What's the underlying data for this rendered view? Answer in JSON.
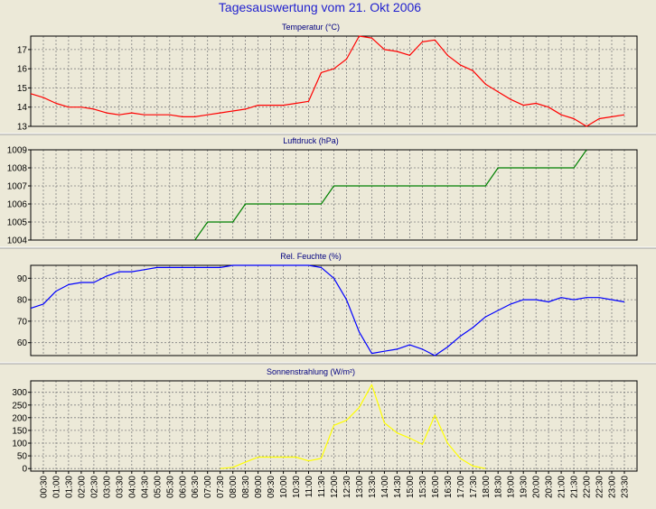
{
  "page_title": "Tagesauswertung vom 21. Okt 2006",
  "time_labels": [
    "00:30",
    "01:00",
    "01:30",
    "02:00",
    "02:30",
    "03:00",
    "03:30",
    "04:00",
    "04:30",
    "05:00",
    "05:30",
    "06:00",
    "06:30",
    "07:00",
    "07:30",
    "08:00",
    "08:30",
    "09:00",
    "09:30",
    "10:00",
    "10:30",
    "11:00",
    "11:30",
    "12:00",
    "12:30",
    "13:00",
    "13:30",
    "14:00",
    "14:30",
    "15:00",
    "15:30",
    "16:00",
    "16:30",
    "17:00",
    "17:30",
    "18:00",
    "18:30",
    "19:00",
    "19:30",
    "20:00",
    "20:30",
    "21:00",
    "21:30",
    "22:00",
    "22:30",
    "23:00",
    "23:30"
  ],
  "colors": {
    "background": "#ece9d8",
    "plot_background": "#ece9d8",
    "grid": "#808080",
    "title": "#1f1fcf",
    "panel_title": "#000080"
  },
  "chart_data": [
    {
      "type": "line",
      "title": "Temperatur (°C)",
      "color": "#ff0000",
      "ylim": [
        13,
        17.7
      ],
      "yticks": [
        13,
        14,
        15,
        16,
        17
      ],
      "grid": true,
      "x": [
        "00:00",
        "00:30",
        "01:00",
        "01:30",
        "02:00",
        "02:30",
        "03:00",
        "03:30",
        "04:00",
        "04:30",
        "05:00",
        "05:30",
        "06:00",
        "06:30",
        "07:00",
        "07:30",
        "08:00",
        "08:30",
        "09:00",
        "09:30",
        "10:00",
        "10:30",
        "11:00",
        "11:30",
        "12:00",
        "12:30",
        "13:00",
        "13:30",
        "14:00",
        "14:30",
        "15:00",
        "15:30",
        "16:00",
        "16:30",
        "17:00",
        "17:30",
        "18:00",
        "18:30",
        "19:00",
        "19:30",
        "20:00",
        "20:30",
        "21:00",
        "21:30",
        "22:00",
        "22:30",
        "23:00",
        "23:30"
      ],
      "values": [
        14.7,
        14.5,
        14.2,
        14.0,
        14.0,
        13.9,
        13.7,
        13.6,
        13.7,
        13.6,
        13.6,
        13.6,
        13.5,
        13.5,
        13.6,
        13.7,
        13.8,
        13.9,
        14.1,
        14.1,
        14.1,
        14.2,
        14.3,
        15.8,
        16.0,
        16.5,
        17.7,
        17.6,
        17.0,
        16.9,
        16.7,
        17.4,
        17.5,
        16.7,
        16.2,
        15.9,
        15.2,
        14.8,
        14.4,
        14.1,
        14.2,
        14.0,
        13.6,
        13.4,
        13.0,
        13.4,
        13.5,
        13.6
      ]
    },
    {
      "type": "line",
      "title": "Luftdruck (hPa)",
      "color": "#008000",
      "ylim": [
        1004,
        1009
      ],
      "yticks": [
        1004,
        1005,
        1006,
        1007,
        1008,
        1009
      ],
      "grid": true,
      "x": [
        "06:30",
        "07:00",
        "07:30",
        "08:00",
        "08:30",
        "09:00",
        "09:30",
        "10:00",
        "10:30",
        "11:00",
        "11:30",
        "12:00",
        "12:30",
        "13:00",
        "13:30",
        "14:00",
        "14:30",
        "15:00",
        "15:30",
        "16:00",
        "16:30",
        "17:00",
        "17:30",
        "18:00",
        "18:30",
        "19:00",
        "19:30",
        "20:00",
        "20:30",
        "21:00",
        "21:30",
        "22:00"
      ],
      "values": [
        1004,
        1005,
        1005,
        1005,
        1006,
        1006,
        1006,
        1006,
        1006,
        1006,
        1006,
        1007,
        1007,
        1007,
        1007,
        1007,
        1007,
        1007,
        1007,
        1007,
        1007,
        1007,
        1007,
        1007,
        1008,
        1008,
        1008,
        1008,
        1008,
        1008,
        1008,
        1009
      ]
    },
    {
      "type": "line",
      "title": "Rel. Feuchte (%)",
      "color": "#0000ff",
      "ylim": [
        54,
        96
      ],
      "yticks": [
        60,
        70,
        80,
        90
      ],
      "grid": true,
      "x": [
        "00:00",
        "00:30",
        "01:00",
        "01:30",
        "02:00",
        "02:30",
        "03:00",
        "03:30",
        "04:00",
        "04:30",
        "05:00",
        "05:30",
        "06:00",
        "06:30",
        "07:00",
        "07:30",
        "08:00",
        "08:30",
        "09:00",
        "09:30",
        "10:00",
        "10:30",
        "11:00",
        "11:30",
        "12:00",
        "12:30",
        "13:00",
        "13:30",
        "14:00",
        "14:30",
        "15:00",
        "15:30",
        "16:00",
        "16:30",
        "17:00",
        "17:30",
        "18:00",
        "18:30",
        "19:00",
        "19:30",
        "20:00",
        "20:30",
        "21:00",
        "21:30",
        "22:00",
        "22:30",
        "23:00",
        "23:30"
      ],
      "values": [
        76,
        78,
        84,
        87,
        88,
        88,
        91,
        93,
        93,
        94,
        95,
        95,
        95,
        95,
        95,
        95,
        96,
        96,
        96,
        96,
        96,
        96,
        96,
        95,
        90,
        80,
        65,
        55,
        56,
        57,
        59,
        57,
        54,
        58,
        63,
        67,
        72,
        75,
        78,
        80,
        80,
        79,
        81,
        80,
        81,
        81,
        80,
        79
      ]
    },
    {
      "type": "line",
      "title": "Sonnenstrahlung (W/m²)",
      "color": "#ffff00",
      "ylim": [
        -10,
        345
      ],
      "yticks": [
        0,
        50,
        100,
        150,
        200,
        250,
        300
      ],
      "grid": true,
      "x": [
        "07:30",
        "08:00",
        "08:30",
        "09:00",
        "09:30",
        "10:00",
        "10:30",
        "11:00",
        "11:30",
        "12:00",
        "12:30",
        "13:00",
        "13:30",
        "14:00",
        "14:30",
        "15:00",
        "15:30",
        "16:00",
        "16:30",
        "17:00",
        "17:30",
        "18:00"
      ],
      "values": [
        0,
        5,
        25,
        45,
        45,
        45,
        45,
        30,
        40,
        170,
        190,
        240,
        330,
        180,
        140,
        120,
        95,
        210,
        100,
        40,
        10,
        0
      ]
    }
  ]
}
